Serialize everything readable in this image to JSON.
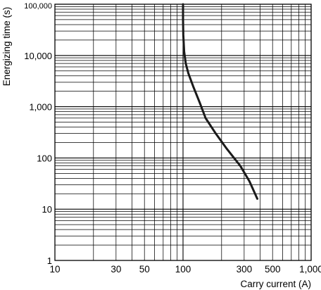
{
  "chart_data": {
    "type": "line",
    "title": "",
    "xlabel": "Carry current (A)",
    "ylabel": "Energizing time (s)",
    "x_scale": "log",
    "y_scale": "log",
    "xlim": [
      10,
      1000
    ],
    "ylim": [
      1,
      100000
    ],
    "grid": true,
    "legend": "none",
    "x_tick_values": [
      10,
      30,
      50,
      100,
      300,
      500,
      1000
    ],
    "x_tick_labels": [
      "10",
      "30",
      "50",
      "100",
      "300",
      "500",
      "1,000"
    ],
    "y_tick_values": [
      1,
      10,
      100,
      1000,
      10000,
      100000
    ],
    "y_tick_labels": [
      "1",
      "10",
      "100",
      "1,000",
      "10,000",
      "100,000"
    ],
    "series": [
      {
        "x": [
          100,
          100,
          100.5,
          102,
          105,
          110,
          120,
          135,
          150,
          180,
          220,
          280,
          330,
          380
        ],
        "y": [
          100000,
          50000,
          25000,
          12000,
          7000,
          4500,
          2500,
          1200,
          600,
          300,
          150,
          70,
          35,
          16
        ]
      }
    ],
    "colors": {
      "line": "#1a1a1a",
      "grid": "#000000",
      "background": "#ffffff"
    }
  }
}
